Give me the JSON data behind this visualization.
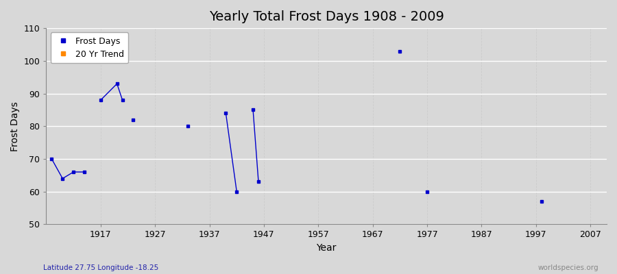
{
  "title": "Yearly Total Frost Days 1908 - 2009",
  "ylabel": "Frost Days",
  "xlabel": "Year",
  "xlim": [
    1907,
    2010
  ],
  "ylim": [
    50,
    110
  ],
  "xticks": [
    1917,
    1927,
    1937,
    1947,
    1957,
    1967,
    1977,
    1987,
    1997,
    2007
  ],
  "yticks": [
    50,
    60,
    70,
    80,
    90,
    100,
    110
  ],
  "background_color": "#d8d8d8",
  "plot_bg_color": "#d8d8d8",
  "grid_color_h": "#ffffff",
  "grid_color_v": "#cccccc",
  "frost_color": "#0000cc",
  "trend_color": "#ff8800",
  "legend_frost_label": "Frost Days",
  "legend_trend_label": "20 Yr Trend",
  "subtitle": "Latitude 27.75 Longitude -18.25",
  "watermark": "worldspecies.org",
  "title_fontsize": 14,
  "label_fontsize": 10,
  "tick_fontsize": 9,
  "groups": [
    [
      [
        1908,
        70
      ],
      [
        1910,
        64
      ],
      [
        1912,
        66
      ],
      [
        1914,
        66
      ]
    ],
    [
      [
        1917,
        88
      ],
      [
        1920,
        93
      ],
      [
        1921,
        88
      ]
    ],
    [
      [
        1923,
        82
      ]
    ],
    [
      [
        1933,
        80
      ]
    ],
    [
      [
        1940,
        84
      ],
      [
        1942,
        60
      ]
    ],
    [
      [
        1945,
        85
      ],
      [
        1946,
        63
      ]
    ],
    [
      [
        1972,
        103
      ]
    ],
    [
      [
        1977,
        60
      ]
    ],
    [
      [
        1998,
        57
      ]
    ]
  ]
}
